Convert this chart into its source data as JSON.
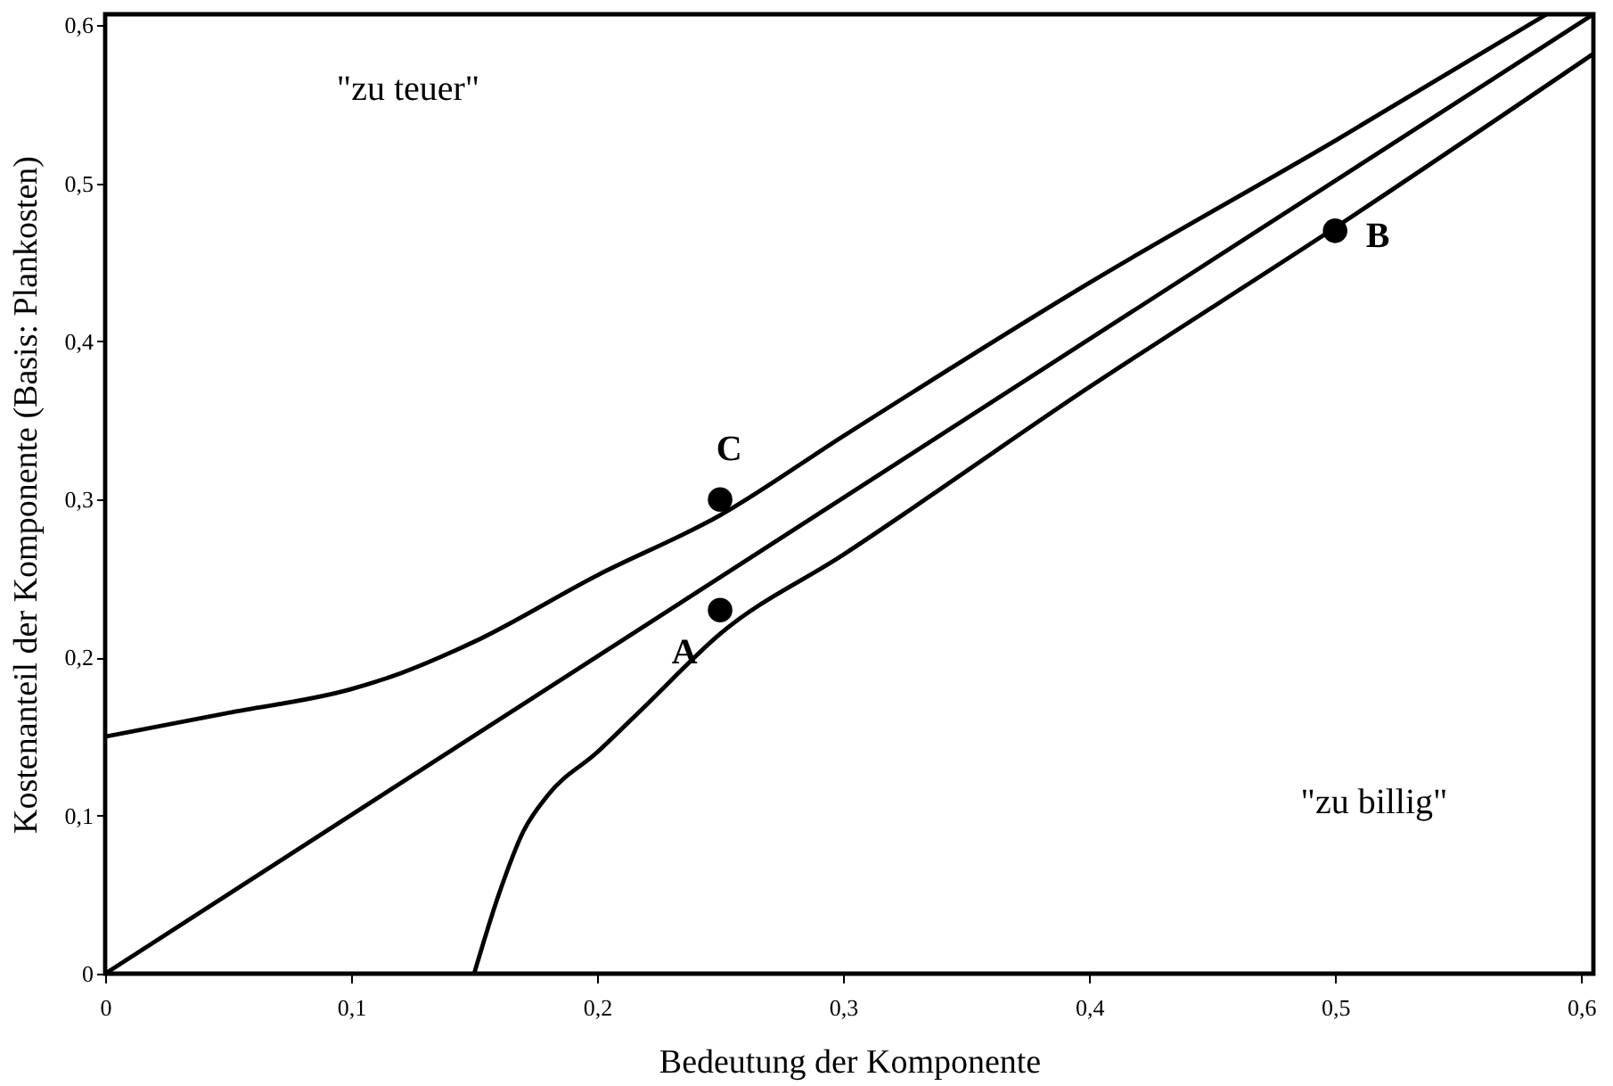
{
  "chart_data": {
    "type": "line",
    "xlabel": "Bedeutung der Komponente",
    "ylabel": "Kostenanteil der Komponente (Basis: Plankosten)",
    "xlim": [
      0,
      0.605
    ],
    "ylim": [
      0,
      0.607
    ],
    "xticks": [
      0,
      {
        "value": 0.1,
        "label": "0,1"
      },
      {
        "value": 0.2,
        "label": "0,2"
      },
      {
        "value": 0.3,
        "label": "0,3"
      },
      {
        "value": 0.4,
        "label": "0,4"
      },
      {
        "value": 0.5,
        "label": "0,5"
      },
      {
        "value": 0.6,
        "label": "0,6"
      }
    ],
    "yticks": [
      0,
      {
        "value": 0.1,
        "label": "0,1"
      },
      {
        "value": 0.2,
        "label": "0,2"
      },
      {
        "value": 0.3,
        "label": "0,3"
      },
      {
        "value": 0.4,
        "label": "0,4"
      },
      {
        "value": 0.5,
        "label": "0,5"
      },
      {
        "value": 0.6,
        "label": "0,6"
      }
    ],
    "grid": false,
    "line_style": "solid",
    "annotations": [
      "\"zu teuer\"",
      "\"zu billig\""
    ],
    "series": [
      {
        "color": "#000000",
        "x": [
          0,
          0.05,
          0.1,
          0.12,
          0.15,
          0.2,
          0.25,
          0.3,
          0.4,
          0.5,
          0.586
        ],
        "values": [
          0.15,
          0.165,
          0.18,
          0.19,
          0.21,
          0.252,
          0.29,
          0.34,
          0.437,
          0.527,
          0.607
        ]
      },
      {
        "color": "#000000",
        "x": [
          0,
          0.605
        ],
        "values": [
          0,
          0.607
        ]
      },
      {
        "color": "#000000",
        "x": [
          0.15,
          0.16,
          0.17,
          0.18,
          0.2,
          0.22,
          0.25,
          0.3,
          0.4,
          0.5,
          0.605
        ],
        "values": [
          0,
          0.05,
          0.09,
          0.113,
          0.14,
          0.17,
          0.215,
          0.265,
          0.371,
          0.472,
          0.582
        ]
      },
      {
        "type": "scatter",
        "name": "A",
        "color": "#000000",
        "marker": "circle",
        "x": [
          0.25
        ],
        "values": [
          0.23
        ]
      },
      {
        "type": "scatter",
        "name": "B",
        "color": "#000000",
        "marker": "circle",
        "x": [
          0.5
        ],
        "values": [
          0.47
        ]
      },
      {
        "type": "scatter",
        "name": "C",
        "color": "#000000",
        "marker": "circle",
        "x": [
          0.25
        ],
        "values": [
          0.3
        ]
      }
    ]
  }
}
